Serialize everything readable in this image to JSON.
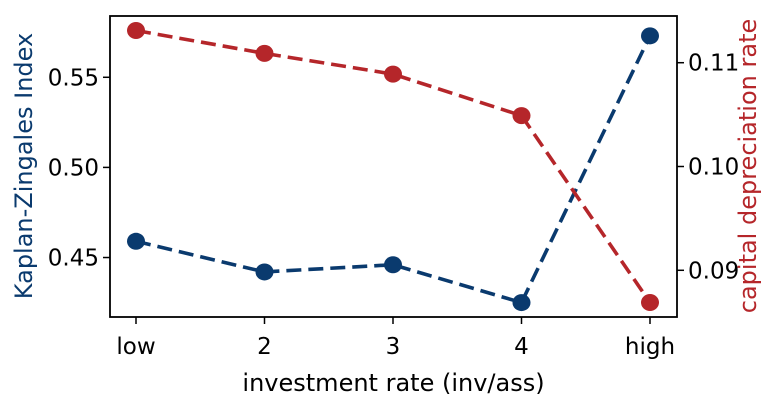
{
  "chart_data": {
    "type": "line",
    "categories": [
      "low",
      "2",
      "3",
      "4",
      "high"
    ],
    "xlabel": "investment rate (inv/ass)",
    "grid": false,
    "left_axis": {
      "label": "Kaplan-Zingales Index",
      "color": "#0a3a6e",
      "ylim": [
        0.417,
        0.584
      ],
      "ticks": [
        0.45,
        0.5,
        0.55
      ],
      "tick_labels": [
        "0.45",
        "0.50",
        "0.55"
      ]
    },
    "right_axis": {
      "label": "capital depreciation rate",
      "color": "#b5262a",
      "ylim": [
        0.0855,
        0.1145
      ],
      "ticks": [
        0.09,
        0.1,
        0.11
      ],
      "tick_labels": [
        "0.09",
        "0.10",
        "0.11"
      ]
    },
    "series": [
      {
        "axis": "left",
        "color": "#0a3a6e",
        "line_style": "dashed",
        "marker": "circle",
        "values": [
          0.459,
          0.442,
          0.446,
          0.425,
          0.573
        ]
      },
      {
        "axis": "right",
        "color": "#b5262a",
        "line_style": "dashed",
        "marker": "circle",
        "values": [
          0.1131,
          0.1109,
          0.1089,
          0.1049,
          0.0869
        ]
      }
    ]
  }
}
